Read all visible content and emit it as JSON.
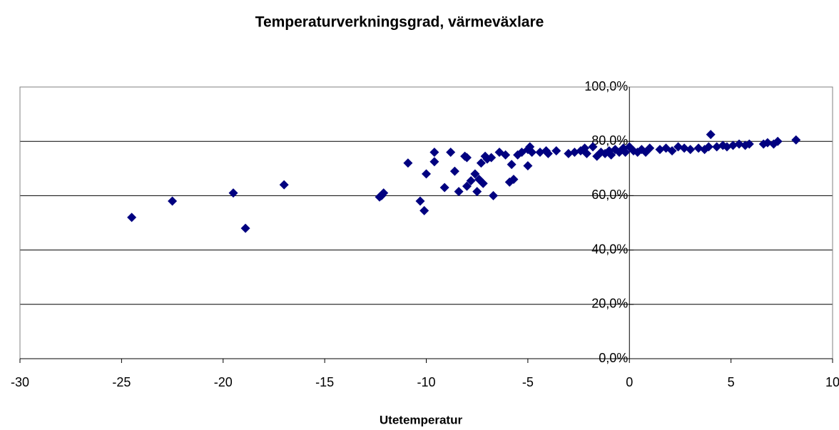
{
  "chart_data": {
    "type": "scatter",
    "title": "Temperaturverkningsgrad, värmeväxlare",
    "x_label": "Utetemperatur",
    "xlim": [
      -30,
      10
    ],
    "xticks": [
      -30,
      -25,
      -20,
      -15,
      -10,
      -5,
      0,
      5,
      10
    ],
    "ylim": [
      0,
      100
    ],
    "yticks": [
      {
        "value": 0,
        "label": "0,0%"
      },
      {
        "value": 20,
        "label": "20,0%"
      },
      {
        "value": 40,
        "label": "40,0%"
      },
      {
        "value": 60,
        "label": "60,0%"
      },
      {
        "value": 80,
        "label": "80,0%"
      },
      {
        "value": 100,
        "label": "100,0%"
      }
    ],
    "grid": true,
    "color": "#000080",
    "x": [
      -24.5,
      -22.5,
      -19.5,
      -18.9,
      -17,
      -12.3,
      -12.1,
      -12.2,
      -10.9,
      -10.3,
      -10.1,
      -10,
      -9.6,
      -9.6,
      -9.1,
      -8.8,
      -8.6,
      -8.4,
      -8.1,
      -8,
      -8,
      -7.8,
      -7.6,
      -7.5,
      -7.4,
      -7.3,
      -7.1,
      -7.2,
      -7,
      -6.8,
      -6.7,
      -6.4,
      -6.1,
      -5.9,
      -5.8,
      -5.7,
      -5.5,
      -5.3,
      -5,
      -5,
      -4.9,
      -4.8,
      -4.4,
      -4.1,
      -4,
      -3.6,
      -3,
      -2.7,
      -2.4,
      -2.2,
      -2.1,
      -1.8,
      -1.6,
      -1.4,
      -1.2,
      -1,
      -0.9,
      -0.7,
      -0.5,
      -0.3,
      -0.2,
      0,
      0.2,
      0.4,
      0.6,
      0.8,
      1,
      1.5,
      1.8,
      2.1,
      2.4,
      2.7,
      3,
      3.4,
      3.7,
      3.9,
      4,
      4.3,
      4.6,
      4.8,
      5.1,
      5.4,
      5.7,
      5.9,
      6.6,
      6.8,
      7.1,
      7.3,
      8.2
    ],
    "values": [
      52,
      58,
      61,
      48,
      64,
      59.5,
      61,
      60,
      72,
      58,
      54.5,
      68,
      76,
      72.5,
      63,
      76,
      69,
      61.5,
      74.5,
      74,
      63.5,
      65.5,
      68,
      61.5,
      66,
      72,
      74.5,
      64.5,
      73.5,
      74,
      60,
      76,
      75,
      65,
      71.5,
      66,
      75,
      76,
      77,
      71,
      78,
      76,
      76,
      76.5,
      75.5,
      76.5,
      75.5,
      76,
      76.5,
      77.5,
      75.5,
      78,
      74.5,
      76,
      75.5,
      76.5,
      75,
      77,
      76,
      77.5,
      76,
      78,
      76.5,
      76,
      77,
      76,
      77.5,
      77,
      77.5,
      76.5,
      78,
      77.5,
      77,
      77.5,
      77,
      78,
      82.5,
      78,
      78.5,
      78,
      78.5,
      79,
      78.5,
      79,
      79,
      79.5,
      79,
      80,
      80.5
    ]
  }
}
